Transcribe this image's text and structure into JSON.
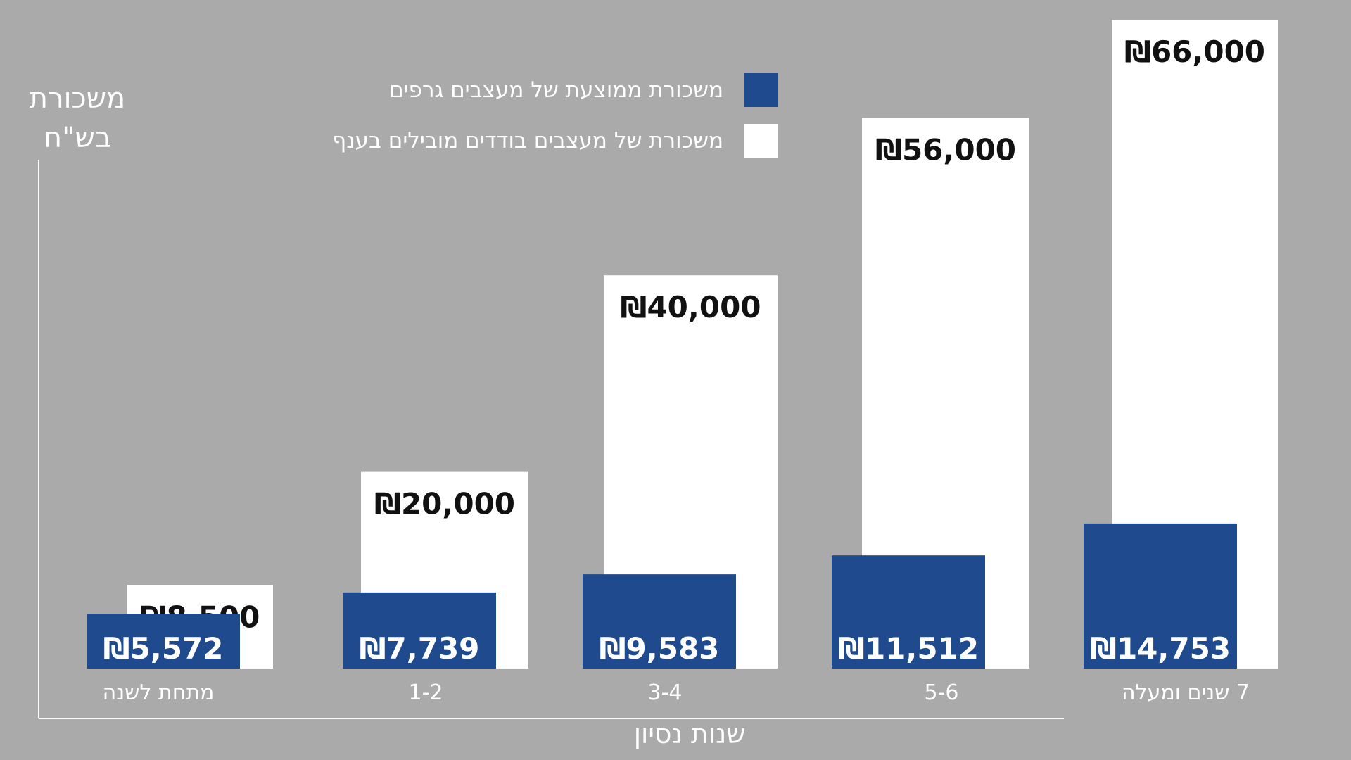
{
  "chart_data": {
    "type": "bar",
    "categories": [
      "מתחת לשנה",
      "1-2",
      "3-4",
      "5-6",
      "7 שנים ומעלה"
    ],
    "series": [
      {
        "name": "משכורת ממוצעת של מעצבים גרפים",
        "values": [
          5572,
          7739,
          9583,
          11512,
          14753
        ],
        "labels": [
          "₪5,572",
          "₪7,739",
          "₪9,583",
          "₪11,512",
          "₪14,753"
        ],
        "color": "#1f4a8e"
      },
      {
        "name": "משכורת של מעצבים בודדים מובילים בענף",
        "values": [
          8500,
          20000,
          40000,
          56000,
          66000
        ],
        "labels": [
          "₪8,500",
          "₪20,000",
          "₪40,000",
          "₪56,000",
          "₪66,000"
        ],
        "color": "#ffffff"
      }
    ],
    "ylabel": "משכורת בש\"ח",
    "ylabel_lines": [
      "משכורת",
      "בש\"ח"
    ],
    "xlabel": "שנות נסיון",
    "ylim": [
      0,
      66000
    ],
    "grid": false,
    "legend": "top-center",
    "background": "#aaaaaa"
  }
}
